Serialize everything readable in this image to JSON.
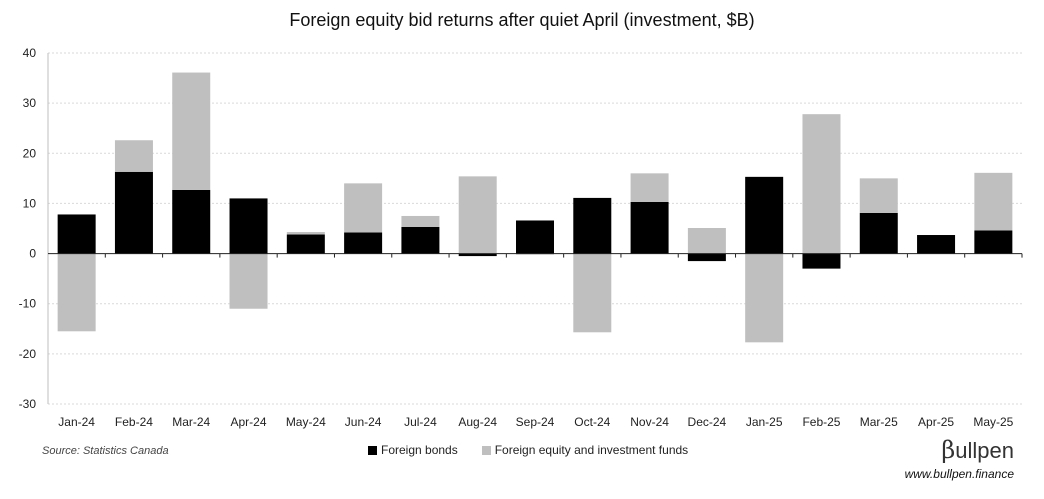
{
  "chart_data": {
    "type": "bar",
    "stacked": true,
    "title": "Foreign equity bid returns after quiet April (investment, $B)",
    "categories": [
      "Jan-24",
      "Feb-24",
      "Mar-24",
      "Apr-24",
      "May-24",
      "Jun-24",
      "Jul-24",
      "Aug-24",
      "Sep-24",
      "Oct-24",
      "Nov-24",
      "Dec-24",
      "Jan-25",
      "Feb-25",
      "Mar-25",
      "Apr-25",
      "May-25"
    ],
    "series": [
      {
        "name": "Foreign bonds",
        "color": "#000000",
        "values": [
          7.8,
          16.3,
          12.7,
          11.0,
          3.8,
          4.2,
          5.3,
          -0.5,
          6.6,
          11.1,
          10.3,
          -1.5,
          15.3,
          -3.0,
          8.1,
          3.7,
          4.6
        ]
      },
      {
        "name": "Foreign equity and investment funds",
        "color": "#bfbfbf",
        "values": [
          -15.5,
          6.3,
          23.4,
          -11.0,
          0.5,
          9.8,
          2.2,
          15.4,
          -0.2,
          -15.7,
          5.7,
          5.1,
          -17.7,
          27.8,
          6.9,
          0.0,
          11.5
        ]
      }
    ],
    "ylim": [
      -30,
      40
    ],
    "yticks": [
      -30,
      -20,
      -10,
      0,
      10,
      20,
      30,
      40
    ],
    "grid": true,
    "legend": "bottom-center"
  },
  "source": "Source: Statistics Canada",
  "brand": {
    "symbol": "β",
    "name": "ullpen",
    "url": "www.bullpen.finance"
  }
}
